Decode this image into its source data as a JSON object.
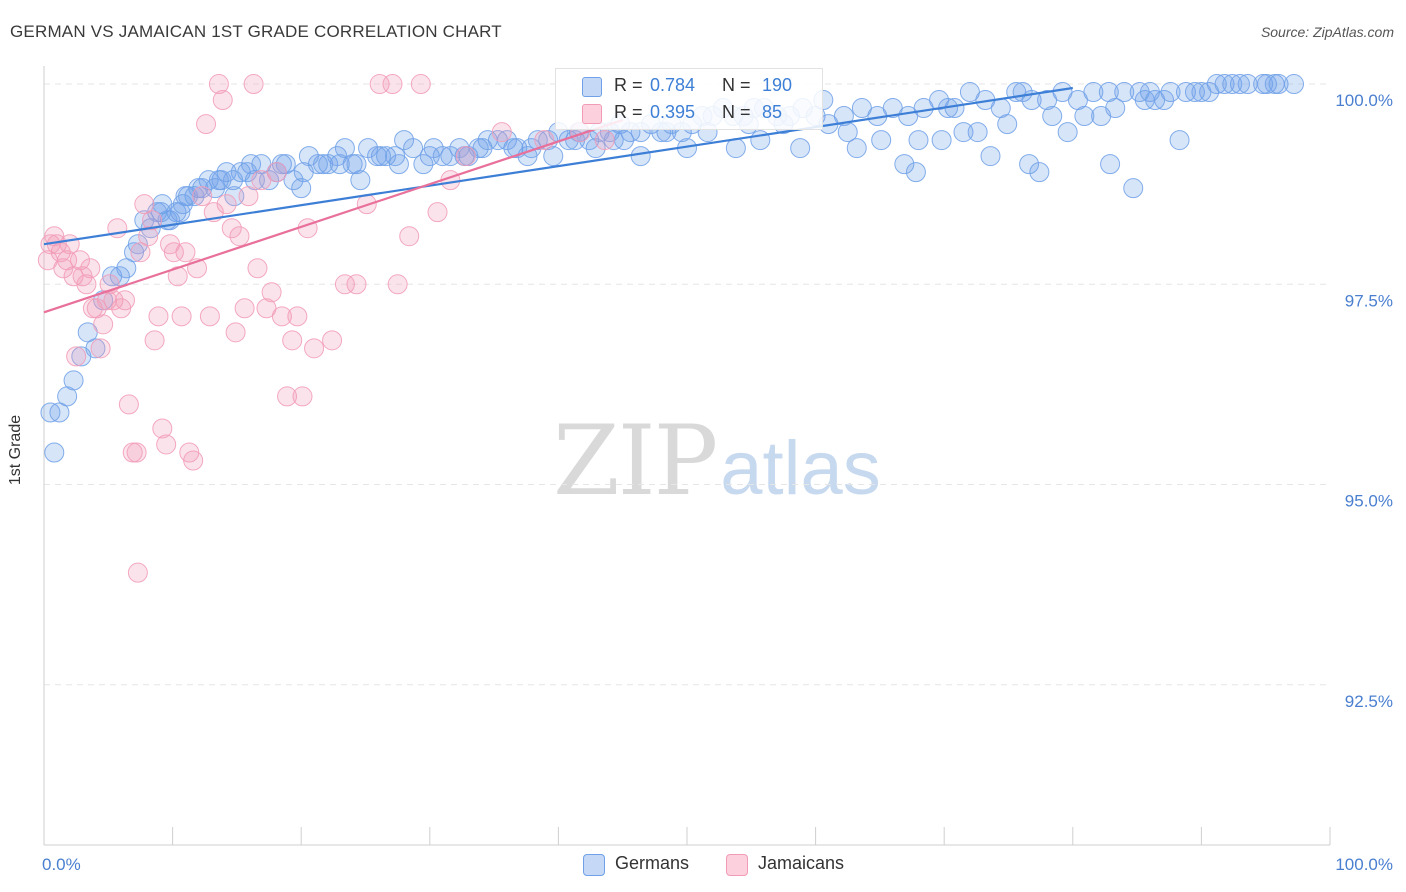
{
  "title": "GERMAN VS JAMAICAN 1ST GRADE CORRELATION CHART",
  "source": "Source: ZipAtlas.com",
  "watermark": {
    "zip": "ZIP",
    "atlas": "atlas"
  },
  "stats": [
    {
      "r_label": "R =",
      "r_value": "0.784",
      "n_label": "N =",
      "n_value": "190",
      "color": "#6fa0e8"
    },
    {
      "r_label": "R =",
      "r_value": "0.395",
      "n_label": "N =",
      "n_value": "85",
      "color": "#f29bb6"
    }
  ],
  "legend": [
    {
      "label": "Germans",
      "fill": "#c5d9f6",
      "stroke": "#6fa0e8"
    },
    {
      "label": "Jamaicans",
      "fill": "#fcd0dc",
      "stroke": "#f29bb6"
    }
  ],
  "colors": {
    "blue": "#6fa0e8",
    "blue_line": "#3d7fd6",
    "pink": "#f29bb6",
    "pink_line": "#e8709a",
    "tick_label": "#4a7fd0",
    "grid": "#e6e6e6"
  },
  "chart_data": {
    "type": "scatter",
    "title": "GERMAN VS JAMAICAN 1ST GRADE CORRELATION CHART",
    "xlabel": "",
    "ylabel": "1st Grade",
    "xlim": [
      0,
      100
    ],
    "ylim": [
      90.5,
      100.15
    ],
    "x_tick_labels": [
      "0.0%",
      "100.0%"
    ],
    "y_ticks": [
      100.0,
      97.5,
      95.0,
      92.5
    ],
    "y_tick_labels": [
      "100.0%",
      "97.5%",
      "95.0%",
      "92.5%"
    ],
    "grid": true,
    "legend_position": "bottom",
    "series": [
      {
        "name": "Germans",
        "points": [
          [
            0.5,
            95.9
          ],
          [
            0.8,
            95.4
          ],
          [
            1.2,
            95.9
          ],
          [
            1.8,
            96.1
          ],
          [
            2.3,
            96.3
          ],
          [
            2.9,
            96.6
          ],
          [
            3.4,
            96.9
          ],
          [
            4.0,
            96.7
          ],
          [
            4.6,
            97.3
          ],
          [
            5.3,
            97.6
          ],
          [
            5.9,
            97.6
          ],
          [
            6.4,
            97.7
          ],
          [
            7.0,
            97.9
          ],
          [
            7.3,
            98.0
          ],
          [
            7.8,
            98.3
          ],
          [
            8.3,
            98.2
          ],
          [
            8.8,
            98.4
          ],
          [
            9.2,
            98.5
          ],
          [
            9.8,
            98.3
          ],
          [
            10.3,
            98.4
          ],
          [
            10.8,
            98.5
          ],
          [
            11.2,
            98.6
          ],
          [
            11.7,
            98.6
          ],
          [
            12.3,
            98.7
          ],
          [
            12.8,
            98.8
          ],
          [
            13.3,
            98.7
          ],
          [
            13.8,
            98.8
          ],
          [
            14.2,
            98.9
          ],
          [
            14.8,
            98.6
          ],
          [
            15.3,
            98.9
          ],
          [
            15.8,
            98.9
          ],
          [
            16.4,
            98.8
          ],
          [
            16.9,
            99.0
          ],
          [
            17.5,
            98.8
          ],
          [
            18.1,
            98.9
          ],
          [
            18.8,
            99.0
          ],
          [
            19.4,
            98.8
          ],
          [
            20.0,
            98.7
          ],
          [
            20.6,
            99.1
          ],
          [
            21.3,
            99.0
          ],
          [
            22.1,
            99.0
          ],
          [
            22.8,
            99.1
          ],
          [
            23.4,
            99.2
          ],
          [
            24.0,
            99.0
          ],
          [
            24.6,
            98.8
          ],
          [
            25.2,
            99.2
          ],
          [
            25.9,
            99.1
          ],
          [
            26.6,
            99.1
          ],
          [
            27.3,
            99.1
          ],
          [
            28.0,
            99.3
          ],
          [
            28.7,
            99.2
          ],
          [
            29.5,
            99.0
          ],
          [
            30.3,
            99.2
          ],
          [
            31.0,
            99.1
          ],
          [
            31.6,
            99.1
          ],
          [
            32.3,
            99.2
          ],
          [
            33.0,
            99.1
          ],
          [
            33.8,
            99.2
          ],
          [
            34.5,
            99.3
          ],
          [
            35.3,
            99.3
          ],
          [
            36.0,
            99.3
          ],
          [
            36.8,
            99.2
          ],
          [
            37.6,
            99.1
          ],
          [
            38.4,
            99.3
          ],
          [
            39.2,
            99.3
          ],
          [
            40.0,
            99.4
          ],
          [
            40.8,
            99.3
          ],
          [
            41.6,
            99.4
          ],
          [
            42.4,
            99.3
          ],
          [
            43.2,
            99.4
          ],
          [
            44.0,
            99.4
          ],
          [
            44.8,
            99.5
          ],
          [
            45.6,
            99.4
          ],
          [
            46.4,
            99.4
          ],
          [
            47.2,
            99.5
          ],
          [
            48.0,
            99.4
          ],
          [
            48.8,
            99.5
          ],
          [
            49.6,
            99.4
          ],
          [
            50.4,
            99.5
          ],
          [
            51.2,
            99.6
          ],
          [
            52.0,
            99.6
          ],
          [
            52.8,
            99.7
          ],
          [
            53.6,
            99.6
          ],
          [
            54.4,
            99.6
          ],
          [
            55.2,
            99.7
          ],
          [
            56.0,
            99.7
          ],
          [
            57.0,
            99.6
          ],
          [
            58.0,
            99.6
          ],
          [
            59.0,
            99.7
          ],
          [
            60.0,
            99.6
          ],
          [
            61.0,
            99.5
          ],
          [
            62.2,
            99.6
          ],
          [
            63.6,
            99.7
          ],
          [
            64.8,
            99.6
          ],
          [
            66.0,
            99.7
          ],
          [
            67.2,
            99.6
          ],
          [
            68.4,
            99.7
          ],
          [
            69.6,
            99.8
          ],
          [
            70.8,
            99.7
          ],
          [
            72.0,
            99.9
          ],
          [
            73.2,
            99.8
          ],
          [
            74.4,
            99.7
          ],
          [
            75.6,
            99.9
          ],
          [
            76.8,
            99.8
          ],
          [
            78.0,
            99.8
          ],
          [
            79.2,
            99.9
          ],
          [
            80.4,
            99.8
          ],
          [
            81.6,
            99.9
          ],
          [
            82.8,
            99.9
          ],
          [
            84.0,
            99.9
          ],
          [
            85.2,
            99.9
          ],
          [
            86.4,
            99.8
          ],
          [
            87.6,
            99.9
          ],
          [
            88.8,
            99.9
          ],
          [
            90.0,
            99.9
          ],
          [
            91.2,
            100.0
          ],
          [
            92.4,
            100.0
          ],
          [
            93.6,
            100.0
          ],
          [
            94.8,
            100.0
          ],
          [
            96.0,
            100.0
          ],
          [
            97.2,
            100.0
          ],
          [
            39.6,
            99.1
          ],
          [
            42.9,
            99.2
          ],
          [
            46.4,
            99.1
          ],
          [
            50.0,
            99.2
          ],
          [
            53.8,
            99.2
          ],
          [
            58.8,
            99.2
          ],
          [
            63.2,
            99.2
          ],
          [
            66.9,
            99.0
          ],
          [
            69.8,
            99.3
          ],
          [
            73.6,
            99.1
          ],
          [
            76.6,
            99.0
          ],
          [
            79.6,
            99.4
          ],
          [
            82.9,
            99.0
          ],
          [
            88.3,
            99.3
          ],
          [
            84.7,
            98.7
          ],
          [
            77.4,
            98.9
          ],
          [
            67.8,
            98.9
          ],
          [
            71.5,
            99.4
          ],
          [
            55.7,
            99.3
          ],
          [
            44.3,
            99.3
          ],
          [
            36.5,
            99.2
          ],
          [
            32.7,
            99.1
          ],
          [
            27.6,
            99.0
          ],
          [
            24.3,
            99.0
          ],
          [
            21.7,
            99.0
          ],
          [
            18.5,
            99.0
          ],
          [
            16.1,
            99.0
          ],
          [
            14.7,
            98.8
          ],
          [
            13.6,
            98.8
          ],
          [
            12.0,
            98.7
          ],
          [
            11.0,
            98.6
          ],
          [
            10.6,
            98.4
          ],
          [
            9.6,
            98.3
          ],
          [
            9.1,
            98.4
          ],
          [
            62.5,
            99.4
          ],
          [
            65.1,
            99.3
          ],
          [
            68.0,
            99.3
          ],
          [
            72.6,
            99.4
          ],
          [
            74.9,
            99.5
          ],
          [
            78.4,
            99.6
          ],
          [
            80.9,
            99.6
          ],
          [
            83.3,
            99.7
          ],
          [
            85.6,
            99.8
          ],
          [
            87.1,
            99.8
          ],
          [
            89.5,
            99.9
          ],
          [
            91.8,
            100.0
          ],
          [
            93.0,
            100.0
          ],
          [
            95.1,
            100.0
          ],
          [
            95.7,
            100.0
          ],
          [
            90.6,
            99.9
          ],
          [
            86.0,
            99.9
          ],
          [
            82.2,
            99.6
          ],
          [
            76.1,
            99.9
          ],
          [
            70.3,
            99.7
          ],
          [
            60.6,
            99.8
          ],
          [
            57.5,
            99.5
          ],
          [
            54.8,
            99.5
          ],
          [
            51.6,
            99.4
          ],
          [
            48.4,
            99.4
          ],
          [
            45.1,
            99.3
          ],
          [
            41.3,
            99.3
          ],
          [
            37.9,
            99.2
          ],
          [
            34.1,
            99.2
          ],
          [
            30.0,
            99.1
          ],
          [
            26.2,
            99.1
          ],
          [
            23.0,
            99.0
          ],
          [
            20.2,
            98.9
          ]
        ],
        "trend": {
          "x": [
            0,
            80
          ],
          "y": [
            98.0,
            99.95
          ]
        }
      },
      {
        "name": "Jamaicans",
        "points": [
          [
            0.3,
            97.8
          ],
          [
            0.5,
            98.0
          ],
          [
            0.8,
            98.1
          ],
          [
            1.0,
            98.0
          ],
          [
            1.3,
            97.9
          ],
          [
            1.5,
            97.7
          ],
          [
            1.8,
            97.8
          ],
          [
            2.0,
            98.0
          ],
          [
            2.3,
            97.6
          ],
          [
            2.5,
            96.6
          ],
          [
            2.8,
            97.8
          ],
          [
            3.0,
            97.6
          ],
          [
            3.3,
            97.5
          ],
          [
            3.6,
            97.7
          ],
          [
            3.8,
            97.2
          ],
          [
            4.1,
            97.2
          ],
          [
            4.4,
            96.7
          ],
          [
            4.6,
            97.0
          ],
          [
            4.9,
            97.3
          ],
          [
            5.1,
            97.5
          ],
          [
            5.4,
            97.3
          ],
          [
            5.7,
            98.2
          ],
          [
            6.0,
            97.2
          ],
          [
            6.3,
            97.3
          ],
          [
            6.6,
            96.0
          ],
          [
            6.9,
            95.4
          ],
          [
            7.2,
            95.4
          ],
          [
            7.5,
            97.9
          ],
          [
            7.8,
            98.5
          ],
          [
            8.1,
            98.1
          ],
          [
            8.4,
            98.3
          ],
          [
            8.6,
            96.8
          ],
          [
            8.9,
            97.1
          ],
          [
            9.2,
            95.7
          ],
          [
            9.5,
            95.5
          ],
          [
            9.8,
            98.0
          ],
          [
            10.1,
            97.9
          ],
          [
            10.4,
            97.6
          ],
          [
            10.7,
            97.1
          ],
          [
            11.0,
            97.9
          ],
          [
            11.3,
            95.4
          ],
          [
            11.6,
            95.3
          ],
          [
            11.9,
            97.7
          ],
          [
            12.3,
            98.6
          ],
          [
            12.6,
            99.5
          ],
          [
            12.9,
            97.1
          ],
          [
            13.2,
            98.4
          ],
          [
            13.6,
            100.0
          ],
          [
            13.9,
            99.8
          ],
          [
            14.2,
            98.5
          ],
          [
            14.6,
            98.2
          ],
          [
            14.9,
            96.9
          ],
          [
            15.2,
            98.1
          ],
          [
            15.6,
            97.2
          ],
          [
            15.9,
            98.6
          ],
          [
            16.3,
            100.0
          ],
          [
            16.6,
            97.7
          ],
          [
            16.9,
            98.8
          ],
          [
            17.3,
            97.2
          ],
          [
            17.7,
            97.4
          ],
          [
            18.1,
            98.9
          ],
          [
            18.5,
            97.1
          ],
          [
            18.9,
            96.1
          ],
          [
            19.3,
            96.8
          ],
          [
            19.7,
            97.1
          ],
          [
            20.1,
            96.1
          ],
          [
            20.5,
            98.2
          ],
          [
            21.0,
            96.7
          ],
          [
            22.4,
            96.8
          ],
          [
            23.4,
            97.5
          ],
          [
            24.3,
            97.5
          ],
          [
            25.1,
            98.5
          ],
          [
            26.1,
            100.0
          ],
          [
            27.1,
            100.0
          ],
          [
            27.5,
            97.5
          ],
          [
            28.4,
            98.1
          ],
          [
            29.3,
            100.0
          ],
          [
            30.6,
            98.4
          ],
          [
            31.6,
            98.8
          ],
          [
            32.8,
            99.1
          ],
          [
            35.6,
            99.4
          ],
          [
            38.9,
            99.3
          ],
          [
            41.7,
            99.4
          ],
          [
            43.6,
            99.3
          ],
          [
            7.3,
            93.9
          ]
        ],
        "trend": {
          "x": [
            0,
            45
          ],
          "y": [
            97.15,
            99.55
          ]
        }
      }
    ]
  }
}
